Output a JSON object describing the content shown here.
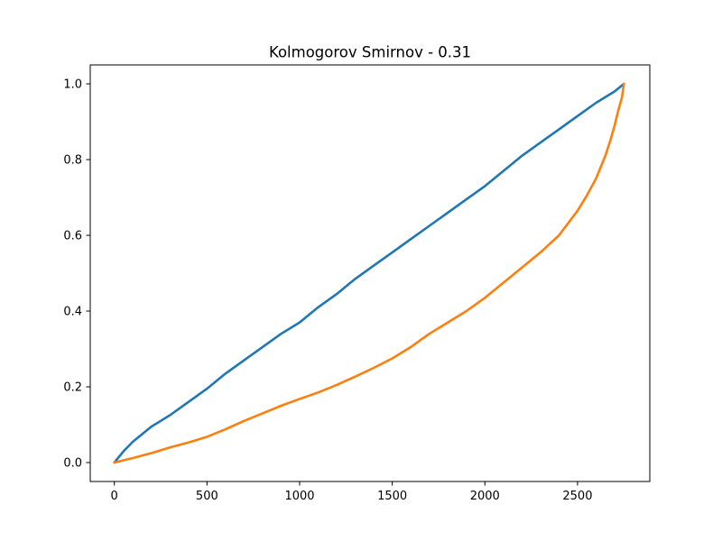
{
  "chart_data": {
    "type": "line",
    "title": "Kolmogorov Smirnov - 0.31",
    "xlabel": "",
    "ylabel": "",
    "xlim": [
      -130,
      2890
    ],
    "ylim": [
      -0.05,
      1.05
    ],
    "xticks": [
      0,
      500,
      1000,
      1500,
      2000,
      2500
    ],
    "yticks": [
      0.0,
      0.2,
      0.4,
      0.6,
      0.8,
      1.0
    ],
    "xtick_labels": [
      "0",
      "500",
      "1000",
      "1500",
      "2000",
      "2500"
    ],
    "ytick_labels": [
      "0.0",
      "0.2",
      "0.4",
      "0.6",
      "0.8",
      "1.0"
    ],
    "grid": false,
    "legend": "none",
    "series": [
      {
        "color": "#1f77b4",
        "x": [
          0,
          50,
          100,
          150,
          200,
          250,
          300,
          400,
          500,
          600,
          700,
          800,
          900,
          1000,
          1100,
          1200,
          1300,
          1400,
          1500,
          1600,
          1700,
          1800,
          1900,
          2000,
          2100,
          2200,
          2300,
          2400,
          2500,
          2600,
          2700,
          2750
        ],
        "y": [
          0.0,
          0.03,
          0.055,
          0.075,
          0.095,
          0.11,
          0.125,
          0.16,
          0.195,
          0.235,
          0.27,
          0.305,
          0.34,
          0.37,
          0.41,
          0.445,
          0.485,
          0.52,
          0.555,
          0.59,
          0.625,
          0.66,
          0.695,
          0.73,
          0.77,
          0.81,
          0.845,
          0.88,
          0.915,
          0.95,
          0.98,
          1.0
        ]
      },
      {
        "color": "#ff7f0e",
        "x": [
          0,
          100,
          200,
          300,
          400,
          500,
          600,
          700,
          800,
          900,
          1000,
          1100,
          1200,
          1300,
          1400,
          1500,
          1600,
          1700,
          1800,
          1900,
          2000,
          2100,
          2200,
          2300,
          2400,
          2500,
          2550,
          2600,
          2650,
          2680,
          2700,
          2720,
          2740,
          2750
        ],
        "y": [
          0.0,
          0.012,
          0.025,
          0.04,
          0.053,
          0.068,
          0.088,
          0.11,
          0.13,
          0.15,
          0.168,
          0.185,
          0.205,
          0.227,
          0.25,
          0.275,
          0.305,
          0.34,
          0.37,
          0.4,
          0.435,
          0.475,
          0.515,
          0.555,
          0.6,
          0.665,
          0.705,
          0.75,
          0.81,
          0.855,
          0.89,
          0.93,
          0.965,
          1.0
        ]
      }
    ]
  }
}
